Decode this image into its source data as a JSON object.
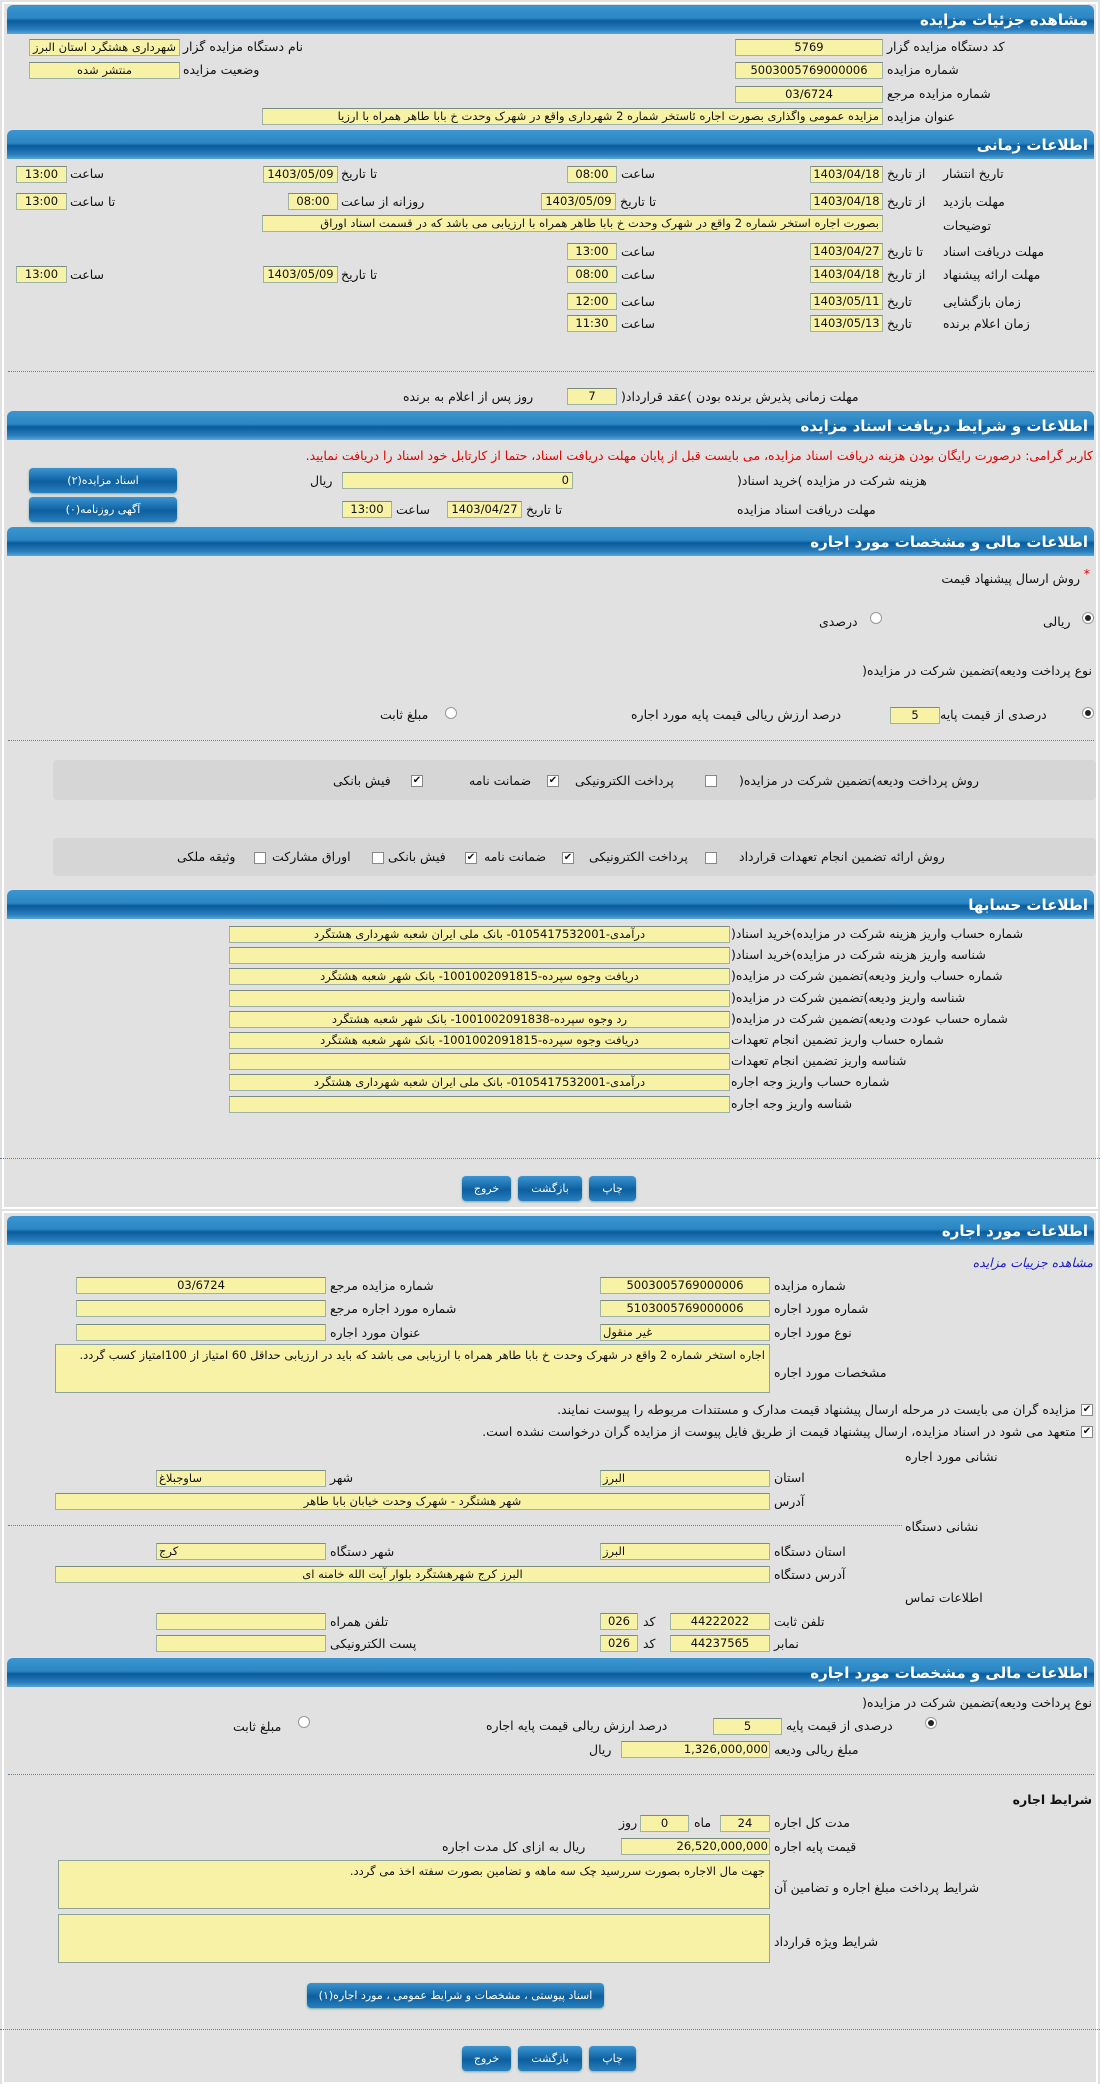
{
  "details": {
    "header": "مشاهده جزئیات مزایده",
    "code_label": "کد دستگاه مزایده گزار",
    "code": "5769",
    "name_label": "نام دستگاه مزایده گزار",
    "name": "شهرداری هشتگرد استان البرز",
    "number_label": "شماره مزایده",
    "number": "5003005769000006",
    "status_label": "وضعیت مزایده",
    "status": "منتشر شده",
    "ref_label": "شماره مزایده مرجع",
    "ref": "03/6724",
    "title_label": "عنوان مزایده",
    "title": "مزایده عمومی واگذاری بصورت اجاره ئاستخر شماره 2 شهرداری واقع در شهرک وحدت خ بابا طاهر همراه با ارزیا"
  },
  "time": {
    "header": "اطلاعات زمانی",
    "publish": {
      "label": "تاریخ انتشار",
      "from_label": "از تاریخ",
      "from": "1403/04/18",
      "time1_label": "ساعت",
      "time1": "08:00",
      "to_label": "تا تاریخ",
      "to": "1403/05/09",
      "time2_label": "ساعت",
      "time2": "13:00"
    },
    "visit": {
      "label": "مهلت بازدید",
      "from_label": "از تاریخ",
      "from": "1403/04/18",
      "to_label": "تا تاریخ",
      "to": "1403/05/09",
      "daily_label": "روزانه از ساعت",
      "daily": "08:00",
      "until_label": "تا ساعت",
      "until": "13:00"
    },
    "desc": {
      "label": "توضیحات",
      "value": "بصورت اجاره استخر شماره 2 واقع در شهرک وحدت خ بابا طاهر همراه با ارزیابی می باشد که در قسمت اسناد اوراق"
    },
    "docs": {
      "label": "مهلت دریافت اسناد",
      "to_label": "تا تاریخ",
      "to": "1403/04/27",
      "time_label": "ساعت",
      "time": "13:00"
    },
    "offer": {
      "label": "مهلت ارائه پیشنهاد",
      "from_label": "از تاریخ",
      "from": "1403/04/18",
      "time1_label": "ساعت",
      "time1": "08:00",
      "to_label": "تا تاریخ",
      "to": "1403/05/09",
      "time2_label": "ساعت",
      "time2": "13:00"
    },
    "opening": {
      "label": "زمان بازگشایی",
      "date_label": "تاریخ",
      "date": "1403/05/11",
      "time_label": "ساعت",
      "time": "12:00"
    },
    "winner": {
      "label": "زمان اعلام برنده",
      "date_label": "تاریخ",
      "date": "1403/05/13",
      "time_label": "ساعت",
      "time": "11:30"
    },
    "accept_label": "مهلت زمانی پذیرش برنده بودن )عقد قرارداد(",
    "accept_days": "7",
    "accept_suffix": "روز پس از اعلام به برنده"
  },
  "docs": {
    "header": "اطلاعات و شرایط دریافت اسناد مزایده",
    "notice": "کاربر گرامی: درصورت رایگان بودن هزینه دریافت اسناد مزایده، می بایست قبل از پایان مهلت دریافت اسناد، حتما از کارتابل خود اسناد را دریافت نمایید.",
    "fee_label": "هزینه شرکت در مزایده )خرید اسناد(",
    "fee": "0",
    "currency": "ریال",
    "deadline_label": "مهلت دریافت اسناد مزایده",
    "to_label": "تا تاریخ",
    "to": "1403/04/27",
    "time_label": "ساعت",
    "time": "13:00",
    "btn_docs": "اسناد مزایده(۲)",
    "btn_ads": "آگهی روزنامه(۰)"
  },
  "finance": {
    "header": "اطلاعات مالی و مشخصات مورد اجاره",
    "method_label": "روش ارسال پیشنهاد قیمت",
    "required_mark": "*",
    "method_rial": "ریالی",
    "method_percent": "درصدی",
    "method_selected": "ریالی",
    "deposit_type_label": "نوع پرداخت ودیعه)تضمین شرکت در مزایده(",
    "pct_label": "درصدی از قیمت پایه",
    "pct": "5",
    "pct_suffix": "درصد ارزش ریالی قیمت پایه مورد اجاره",
    "fixed_label": "مبلغ ثابت",
    "deposit_selected": "درصدی از قیمت پایه",
    "pay_label": "روش پرداخت ودیعه)تضمین شرکت در مزایده(",
    "pay_options": [
      {
        "label": "پرداخت الکترونیکی",
        "checked": false
      },
      {
        "label": "ضمانت نامه",
        "checked": true
      },
      {
        "label": "فیش بانکی",
        "checked": true
      }
    ],
    "guarantee_label": "روش ارائه تضمین انجام تعهدات قرارداد",
    "guarantee_options": [
      {
        "label": "پرداخت الکترونیکی",
        "checked": false
      },
      {
        "label": "ضمانت نامه",
        "checked": true
      },
      {
        "label": "فیش بانکی",
        "checked": true
      },
      {
        "label": "اوراق مشارکت",
        "checked": false
      },
      {
        "label": "وثیقه ملکی",
        "checked": false
      }
    ]
  },
  "accounts": {
    "header": "اطلاعات حسابها",
    "rows": [
      {
        "label": "شماره حساب واریز هزینه شرکت در مزایده)خرید اسناد(",
        "value": "درآمدی-0105417532001- بانک ملی ایران شعبه شهرداری هشتگرد"
      },
      {
        "label": "شناسه واریز هزینه شرکت در مزایده)خرید اسناد(",
        "value": ""
      },
      {
        "label": "شماره حساب واریز ودیعه)تضمین شرکت در مزایده(",
        "value": "دریافت وجوه سپرده-1001002091815- بانک شهر شعبه هشتگرد"
      },
      {
        "label": "شناسه واریز ودیعه)تضمین شرکت در مزایده(",
        "value": ""
      },
      {
        "label": "شماره حساب عودت ودیعه)تضمین شرکت در مزایده(",
        "value": "رد وجوه سپرده-1001002091838- بانک شهر شعبه هشتگرد"
      },
      {
        "label": "شماره حساب واریز تضمین انجام تعهدات",
        "value": "دریافت وجوه سپرده-1001002091815- بانک شهر شعبه هشتگرد"
      },
      {
        "label": "شناسه واریز تضمین انجام تعهدات",
        "value": ""
      },
      {
        "label": "شماره حساب واریز وجه اجاره",
        "value": "درآمدی-0105417532001- بانک ملی ایران شعبه شهرداری هشتگرد"
      },
      {
        "label": "شناسه واریز وجه اجاره",
        "value": ""
      }
    ]
  },
  "actions": {
    "print": "چاپ",
    "back": "بازگشت",
    "exit": "خروج"
  },
  "lease": {
    "header": "اطلاعات مورد اجاره",
    "details_link": "مشاهده جزییات مزایده",
    "auction_no_label": "شماره مزایده",
    "auction_no": "5003005769000006",
    "ref_label": "شماره مزایده مرجع",
    "ref": "03/6724",
    "item_no_label": "شماره مورد اجاره",
    "item_no": "5103005769000006",
    "item_ref_label": "شماره مورد اجاره مرجع",
    "item_ref": "",
    "type_label": "نوع مورد اجاره",
    "type": "غیر منقول",
    "title_label": "عنوان مورد اجاره",
    "title": "",
    "spec_label": "مشخصات مورد اجاره",
    "spec": "اجاره استخر شماره 2 واقع در شهرک وحدت خ بابا طاهر همراه با ارزیابی می باشد  که باید در ارزیابی حداقل 60 امتیاز از 100امتیاز کسب گردد.",
    "check1": "مزایده گران می بایست در مرحله ارسال پیشنهاد قیمت مدارک و مستندات مربوطه را پیوست نمایند.",
    "check2": "متعهد می شود در اسناد مزایده، ارسال پیشنهاد قیمت از طریق فایل پیوست از مزایده گران درخواست نشده است.",
    "address_title": "نشانی مورد اجاره",
    "province_label": "استان",
    "province": "البرز",
    "city_label": "شهر",
    "city": "ساوجبلاغ",
    "address_label": "آدرس",
    "address": "شهر هشتگرد - شهرک وحدت خیابان بابا طاهر",
    "org_title": "نشانی دستگاه",
    "org_province_label": "استان دستگاه",
    "org_province": "البرز",
    "org_city_label": "شهر دستگاه",
    "org_city": "کرج",
    "org_address_label": "آدرس دستگاه",
    "org_address": "البرز کرج شهرهشتگرد بلوار آیت الله خامنه ای",
    "contact_title": "اطلاعات تماس",
    "phone_label": "تلفن ثابت",
    "phone": "44222022",
    "code_label": "کد",
    "phone_code": "026",
    "mobile_label": "تلفن همراه",
    "mobile": "",
    "fax_label": "نمابر",
    "fax": "44237565",
    "fax_code": "026",
    "email_label": "پست الکترونیکی",
    "email": ""
  },
  "lease_fin": {
    "header": "اطلاعات مالی و مشخصات مورد اجاره",
    "deposit_type_label": "نوع پرداخت ودیعه)تضمین شرکت در مزایده(",
    "pct_label": "درصدی از قیمت پایه",
    "pct": "5",
    "pct_suffix": "درصد ارزش ریالی قیمت پایه اجاره",
    "fixed_label": "مبلغ ثابت",
    "deposit_amount_label": "مبلغ ریالی ودیعه",
    "deposit_amount": "1,326,000,000",
    "currency": "ریال",
    "terms_title": "شرایط اجاره",
    "duration_label": "مدت کل اجاره",
    "months": "24",
    "months_label": "ماه",
    "days": "0",
    "days_label": "روز",
    "base_label": "قیمت پایه اجاره",
    "base": "26,520,000,000",
    "base_suffix": "ریال به ازای کل مدت اجاره",
    "payment_terms_label": "شرایط پرداخت مبلغ اجاره و تضامین آن",
    "payment_terms": "جهت مال الاجاره بصورت سررسید چک سه ماهه و تضامین بصورت سفته اخذ می گردد.",
    "special_terms_label": "شرایط ویژه قرارداد",
    "special_terms": "",
    "attach_btn": "اسناد پیوستی ، مشخصات و شرایط عمومی ، مورد اجاره(۱)"
  }
}
